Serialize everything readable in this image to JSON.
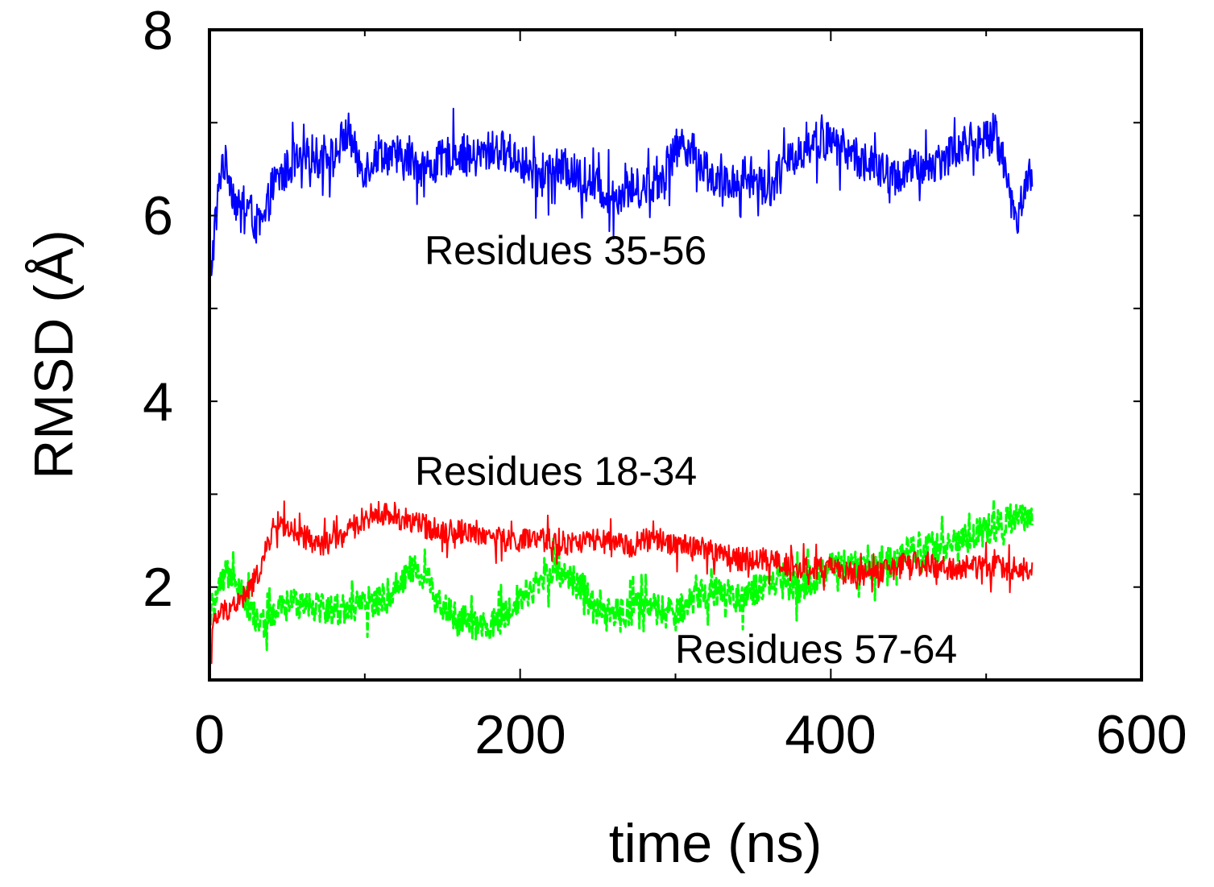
{
  "chart_data": {
    "type": "line",
    "title": "",
    "xlabel": "time (ns)",
    "ylabel": "RMSD (Å)",
    "xlim": [
      0,
      600
    ],
    "ylim": [
      1,
      8
    ],
    "xticks": [
      0,
      200,
      400,
      600
    ],
    "xtick_labels": [
      "0",
      "200",
      "400",
      "600"
    ],
    "yticks": [
      1,
      2,
      3,
      4,
      5,
      6,
      7,
      8
    ],
    "ytick_labels": [
      "",
      "2",
      "",
      "4",
      "",
      "6",
      "",
      "8"
    ],
    "grid": false,
    "series": [
      {
        "name": "Residues 35-56",
        "label": "Residues 35-56",
        "color": "#0000ff",
        "x": [
          0,
          2,
          5,
          8,
          12,
          16,
          20,
          25,
          30,
          35,
          40,
          45,
          50,
          55,
          60,
          65,
          70,
          75,
          80,
          85,
          90,
          95,
          100,
          110,
          120,
          130,
          140,
          150,
          160,
          170,
          180,
          190,
          200,
          210,
          220,
          230,
          240,
          250,
          260,
          270,
          280,
          290,
          300,
          305,
          310,
          320,
          330,
          340,
          350,
          360,
          370,
          380,
          390,
          400,
          410,
          420,
          430,
          440,
          450,
          460,
          470,
          480,
          490,
          500,
          505,
          510,
          515,
          520,
          525,
          530
        ],
        "values": [
          5.2,
          5.6,
          6.1,
          6.6,
          6.5,
          6.2,
          6.0,
          6.1,
          5.9,
          5.9,
          6.3,
          6.4,
          6.5,
          6.6,
          6.5,
          6.7,
          6.6,
          6.7,
          6.6,
          6.8,
          6.9,
          6.6,
          6.5,
          6.7,
          6.6,
          6.6,
          6.5,
          6.6,
          6.7,
          6.6,
          6.7,
          6.7,
          6.6,
          6.4,
          6.5,
          6.5,
          6.4,
          6.3,
          6.2,
          6.3,
          6.3,
          6.4,
          6.7,
          6.8,
          6.7,
          6.5,
          6.3,
          6.4,
          6.4,
          6.3,
          6.5,
          6.7,
          6.8,
          6.8,
          6.7,
          6.6,
          6.5,
          6.4,
          6.5,
          6.5,
          6.6,
          6.7,
          6.8,
          6.8,
          6.9,
          6.7,
          6.2,
          6.0,
          6.3,
          6.5
        ]
      },
      {
        "name": "Residues 18-34",
        "label": "Residues 18-34",
        "color": "#ff0000",
        "x": [
          0,
          3,
          6,
          10,
          15,
          20,
          25,
          30,
          35,
          40,
          45,
          50,
          55,
          60,
          70,
          80,
          90,
          100,
          110,
          120,
          130,
          140,
          150,
          160,
          170,
          180,
          190,
          200,
          210,
          220,
          230,
          240,
          250,
          260,
          270,
          280,
          290,
          300,
          310,
          320,
          330,
          340,
          350,
          360,
          370,
          380,
          390,
          400,
          410,
          420,
          430,
          440,
          450,
          460,
          470,
          480,
          490,
          500,
          510,
          520,
          530
        ],
        "values": [
          1.3,
          1.6,
          1.7,
          1.75,
          1.8,
          1.85,
          1.95,
          2.1,
          2.3,
          2.6,
          2.7,
          2.65,
          2.5,
          2.55,
          2.45,
          2.5,
          2.6,
          2.75,
          2.8,
          2.75,
          2.7,
          2.65,
          2.6,
          2.6,
          2.6,
          2.55,
          2.5,
          2.5,
          2.5,
          2.5,
          2.45,
          2.5,
          2.5,
          2.45,
          2.45,
          2.5,
          2.5,
          2.45,
          2.45,
          2.4,
          2.35,
          2.3,
          2.3,
          2.3,
          2.25,
          2.2,
          2.2,
          2.2,
          2.15,
          2.15,
          2.15,
          2.2,
          2.25,
          2.25,
          2.2,
          2.2,
          2.2,
          2.25,
          2.2,
          2.2,
          2.2
        ]
      },
      {
        "name": "Residues 57-64",
        "label": "Residues 57-64",
        "color": "#00ff00",
        "x": [
          0,
          5,
          10,
          15,
          20,
          25,
          30,
          35,
          40,
          50,
          60,
          70,
          80,
          90,
          100,
          110,
          120,
          130,
          140,
          150,
          160,
          170,
          180,
          190,
          200,
          210,
          220,
          230,
          240,
          250,
          260,
          270,
          280,
          290,
          300,
          310,
          320,
          330,
          340,
          350,
          360,
          370,
          380,
          390,
          400,
          410,
          420,
          430,
          440,
          450,
          460,
          470,
          480,
          490,
          500,
          510,
          520,
          530
        ],
        "values": [
          1.7,
          1.9,
          2.1,
          2.2,
          2.0,
          1.8,
          1.65,
          1.6,
          1.7,
          1.8,
          1.85,
          1.8,
          1.75,
          1.8,
          1.8,
          1.85,
          2.0,
          2.2,
          2.1,
          1.8,
          1.65,
          1.6,
          1.55,
          1.7,
          1.9,
          2.0,
          2.2,
          2.15,
          2.0,
          1.7,
          1.7,
          1.75,
          1.8,
          1.75,
          1.7,
          1.85,
          1.95,
          1.95,
          1.9,
          1.95,
          2.0,
          2.05,
          2.0,
          2.1,
          2.2,
          2.25,
          2.2,
          2.2,
          2.3,
          2.4,
          2.45,
          2.4,
          2.5,
          2.55,
          2.6,
          2.7,
          2.75,
          2.7
        ]
      }
    ],
    "annotations": [
      {
        "text": "Residues 35-56",
        "series": 0
      },
      {
        "text": "Residues 18-34",
        "series": 1
      },
      {
        "text": "Residues 57-64",
        "series": 2
      }
    ]
  }
}
